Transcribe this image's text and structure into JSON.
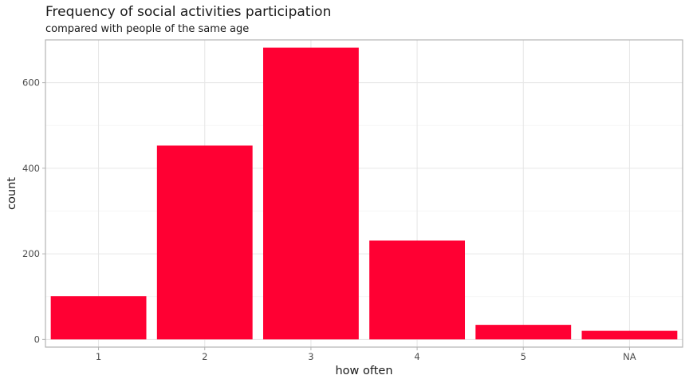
{
  "chart_data": {
    "type": "bar",
    "title": "Frequency of social activities participation",
    "subtitle": "compared with people of the same age",
    "xlabel": "how often",
    "ylabel": "count",
    "categories": [
      "1",
      "2",
      "3",
      "4",
      "5",
      "NA"
    ],
    "values": [
      101,
      453,
      682,
      231,
      34,
      20
    ],
    "ylim": [
      -18,
      700
    ],
    "y_ticks": [
      0,
      200,
      400,
      600
    ],
    "y_tick_labels": [
      "0",
      "200",
      "400",
      "600"
    ],
    "grid": true,
    "bar_color": "#ff0033"
  }
}
